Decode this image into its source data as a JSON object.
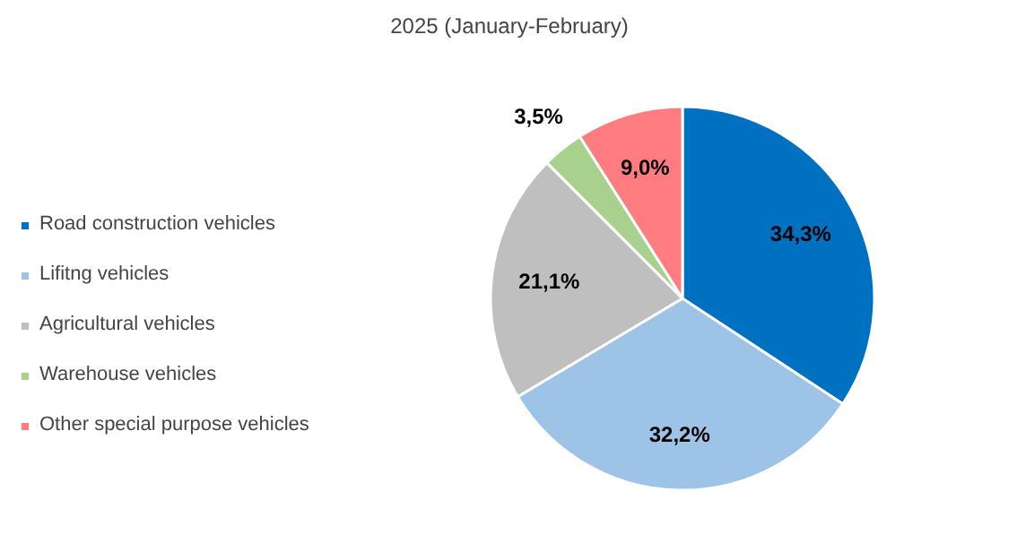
{
  "chart_data": {
    "type": "pie",
    "title": "2025 (January-February)",
    "categories": [
      "Road construction vehicles",
      "Lifitng vehicles",
      "Agricultural vehicles",
      "Warehouse vehicles",
      "Other special purpose vehicles"
    ],
    "values": [
      34.3,
      32.2,
      21.1,
      3.5,
      9.0
    ],
    "value_labels": [
      "34,3%",
      "32,2%",
      "21,1%",
      "3,5%",
      "9,0%"
    ],
    "colors": [
      "#0070c0",
      "#9dc3e6",
      "#bfbfbf",
      "#a9d18e",
      "#ff7c80"
    ],
    "legend": "left"
  }
}
